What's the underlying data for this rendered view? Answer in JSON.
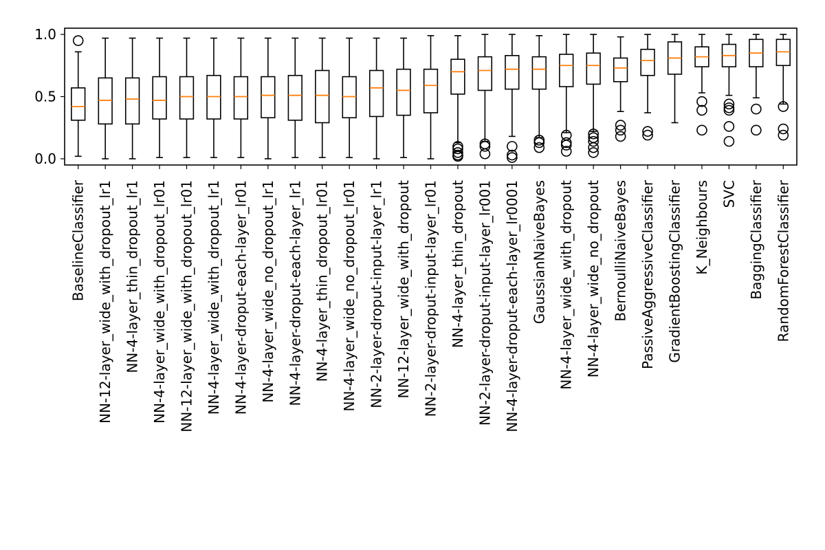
{
  "chart_data": {
    "type": "boxplot",
    "title": "",
    "xlabel": "",
    "ylabel": "",
    "ylim": [
      -0.05,
      1.05
    ],
    "yticks": [
      0.0,
      0.5,
      1.0
    ],
    "ytick_labels": [
      "0.0",
      "0.5",
      "1.0"
    ],
    "grid": false,
    "colors": {
      "box": "#000000",
      "median": "#ff7f0e",
      "outlier": "#000000"
    },
    "categories": [
      "BaselineClassifier",
      "NN-12-layer_wide_with_dropout_lr1",
      "NN-4-layer_thin_dropout_lr1",
      "NN-4-layer_wide_with_dropout_lr01",
      "NN-12-layer_wide_with_dropout_lr01",
      "NN-4-layer_wide_with_dropout_lr1",
      "NN-4-layer-droput-each-layer_lr01",
      "NN-4-layer_wide_no_dropout_lr1",
      "NN-4-layer-droput-each-layer_lr1",
      "NN-4-layer_thin_dropout_lr01",
      "NN-4-layer_wide_no_dropout_lr01",
      "NN-2-layer-droput-input-layer_lr1",
      "NN-12-layer_wide_with_dropout",
      "NN-2-layer-droput-input-layer_lr01",
      "NN-4-layer_thin_dropout",
      "NN-2-layer-droput-input-layer_lr001",
      "NN-4-layer-droput-each-layer_lr0001",
      "GaussianNaiveBayes",
      "NN-4-layer_wide_with_dropout",
      "NN-4-layer_wide_no_dropout",
      "BernoulliNaiveBayes",
      "PassiveAggressiveClassifier",
      "GradientBoostingClassifier",
      "K_Neighbours",
      "SVC",
      "BaggingClassifier",
      "RandomForestClassifier"
    ],
    "boxes": [
      {
        "whislo": 0.02,
        "q1": 0.31,
        "med": 0.42,
        "q3": 0.57,
        "whishi": 0.86,
        "fliers": [
          0.95
        ]
      },
      {
        "whislo": 0.0,
        "q1": 0.28,
        "med": 0.47,
        "q3": 0.65,
        "whishi": 0.97,
        "fliers": []
      },
      {
        "whislo": 0.0,
        "q1": 0.28,
        "med": 0.48,
        "q3": 0.65,
        "whishi": 0.97,
        "fliers": []
      },
      {
        "whislo": 0.01,
        "q1": 0.32,
        "med": 0.47,
        "q3": 0.66,
        "whishi": 0.97,
        "fliers": []
      },
      {
        "whislo": 0.01,
        "q1": 0.32,
        "med": 0.5,
        "q3": 0.66,
        "whishi": 0.97,
        "fliers": []
      },
      {
        "whislo": 0.01,
        "q1": 0.32,
        "med": 0.5,
        "q3": 0.67,
        "whishi": 0.97,
        "fliers": []
      },
      {
        "whislo": 0.01,
        "q1": 0.32,
        "med": 0.5,
        "q3": 0.66,
        "whishi": 0.97,
        "fliers": []
      },
      {
        "whislo": 0.0,
        "q1": 0.33,
        "med": 0.51,
        "q3": 0.66,
        "whishi": 0.97,
        "fliers": []
      },
      {
        "whislo": 0.01,
        "q1": 0.31,
        "med": 0.51,
        "q3": 0.67,
        "whishi": 0.97,
        "fliers": []
      },
      {
        "whislo": 0.01,
        "q1": 0.29,
        "med": 0.51,
        "q3": 0.71,
        "whishi": 0.97,
        "fliers": []
      },
      {
        "whislo": 0.01,
        "q1": 0.33,
        "med": 0.5,
        "q3": 0.66,
        "whishi": 0.97,
        "fliers": []
      },
      {
        "whislo": 0.0,
        "q1": 0.34,
        "med": 0.57,
        "q3": 0.71,
        "whishi": 0.97,
        "fliers": []
      },
      {
        "whislo": 0.01,
        "q1": 0.35,
        "med": 0.55,
        "q3": 0.72,
        "whishi": 0.97,
        "fliers": []
      },
      {
        "whislo": 0.0,
        "q1": 0.37,
        "med": 0.59,
        "q3": 0.72,
        "whishi": 0.99,
        "fliers": []
      },
      {
        "whislo": 0.13,
        "q1": 0.52,
        "med": 0.7,
        "q3": 0.8,
        "whishi": 0.99,
        "fliers": [
          0.1,
          0.08,
          0.05,
          0.03,
          0.02
        ]
      },
      {
        "whislo": 0.14,
        "q1": 0.55,
        "med": 0.71,
        "q3": 0.82,
        "whishi": 1.0,
        "fliers": [
          0.12,
          0.1,
          0.04
        ]
      },
      {
        "whislo": 0.18,
        "q1": 0.56,
        "med": 0.72,
        "q3": 0.83,
        "whishi": 1.0,
        "fliers": [
          0.1,
          0.03,
          0.01
        ]
      },
      {
        "whislo": 0.17,
        "q1": 0.56,
        "med": 0.72,
        "q3": 0.82,
        "whishi": 0.99,
        "fliers": [
          0.15,
          0.13,
          0.09
        ]
      },
      {
        "whislo": 0.21,
        "q1": 0.58,
        "med": 0.75,
        "q3": 0.84,
        "whishi": 1.0,
        "fliers": [
          0.19,
          0.13,
          0.11,
          0.06
        ]
      },
      {
        "whislo": 0.22,
        "q1": 0.6,
        "med": 0.75,
        "q3": 0.85,
        "whishi": 1.0,
        "fliers": [
          0.2,
          0.17,
          0.14,
          0.09,
          0.05
        ]
      },
      {
        "whislo": 0.38,
        "q1": 0.62,
        "med": 0.73,
        "q3": 0.81,
        "whishi": 0.98,
        "fliers": [
          0.27,
          0.23,
          0.18
        ]
      },
      {
        "whislo": 0.37,
        "q1": 0.67,
        "med": 0.79,
        "q3": 0.88,
        "whishi": 1.0,
        "fliers": [
          0.22,
          0.19
        ]
      },
      {
        "whislo": 0.29,
        "q1": 0.68,
        "med": 0.81,
        "q3": 0.94,
        "whishi": 1.0,
        "fliers": []
      },
      {
        "whislo": 0.53,
        "q1": 0.74,
        "med": 0.82,
        "q3": 0.9,
        "whishi": 1.0,
        "fliers": [
          0.46,
          0.39,
          0.23
        ]
      },
      {
        "whislo": 0.51,
        "q1": 0.74,
        "med": 0.83,
        "q3": 0.92,
        "whishi": 1.0,
        "fliers": [
          0.44,
          0.41,
          0.39,
          0.26,
          0.14
        ]
      },
      {
        "whislo": 0.49,
        "q1": 0.74,
        "med": 0.85,
        "q3": 0.96,
        "whishi": 1.0,
        "fliers": [
          0.4,
          0.23
        ]
      },
      {
        "whislo": 0.44,
        "q1": 0.75,
        "med": 0.86,
        "q3": 0.96,
        "whishi": 1.0,
        "fliers": [
          0.42,
          0.24,
          0.19
        ]
      }
    ]
  }
}
